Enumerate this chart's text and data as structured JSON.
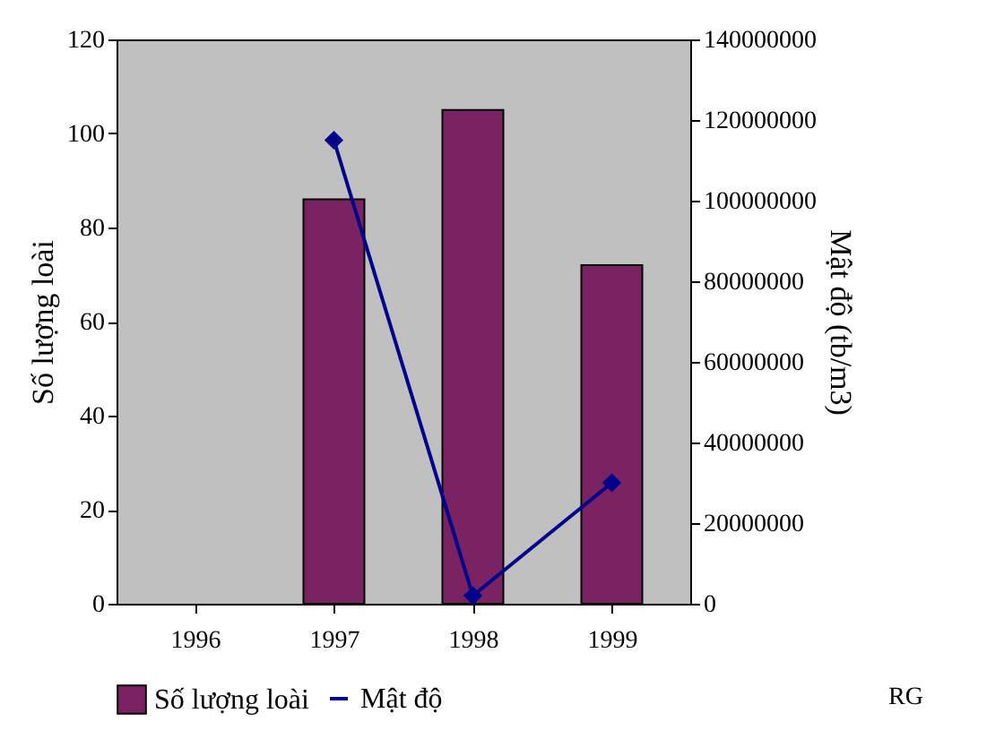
{
  "chart_data": {
    "type": "bar",
    "ylabel": "Số lượng loài",
    "y2label": "Mật độ (tb/m3)",
    "categories": [
      "1996",
      "1997",
      "1998",
      "1999"
    ],
    "series": [
      {
        "name": "Số lượng loài",
        "color": "#7b2262",
        "values": [
          null,
          86,
          105,
          72
        ]
      },
      {
        "name": "Mật độ",
        "type": "line",
        "axis": "y2",
        "color": "#00008b",
        "marker": "diamond",
        "values": [
          null,
          115000000,
          2000000,
          30000000
        ]
      }
    ],
    "ylim": [
      0,
      120
    ],
    "yticks": [
      0,
      20,
      40,
      60,
      80,
      100,
      120
    ],
    "y2lim": [
      0,
      140000000
    ],
    "y2ticks": [
      0,
      20000000,
      40000000,
      60000000,
      80000000,
      100000000,
      120000000,
      140000000
    ],
    "grid": false,
    "legend": "bottom",
    "annotations": [
      "RG"
    ]
  }
}
